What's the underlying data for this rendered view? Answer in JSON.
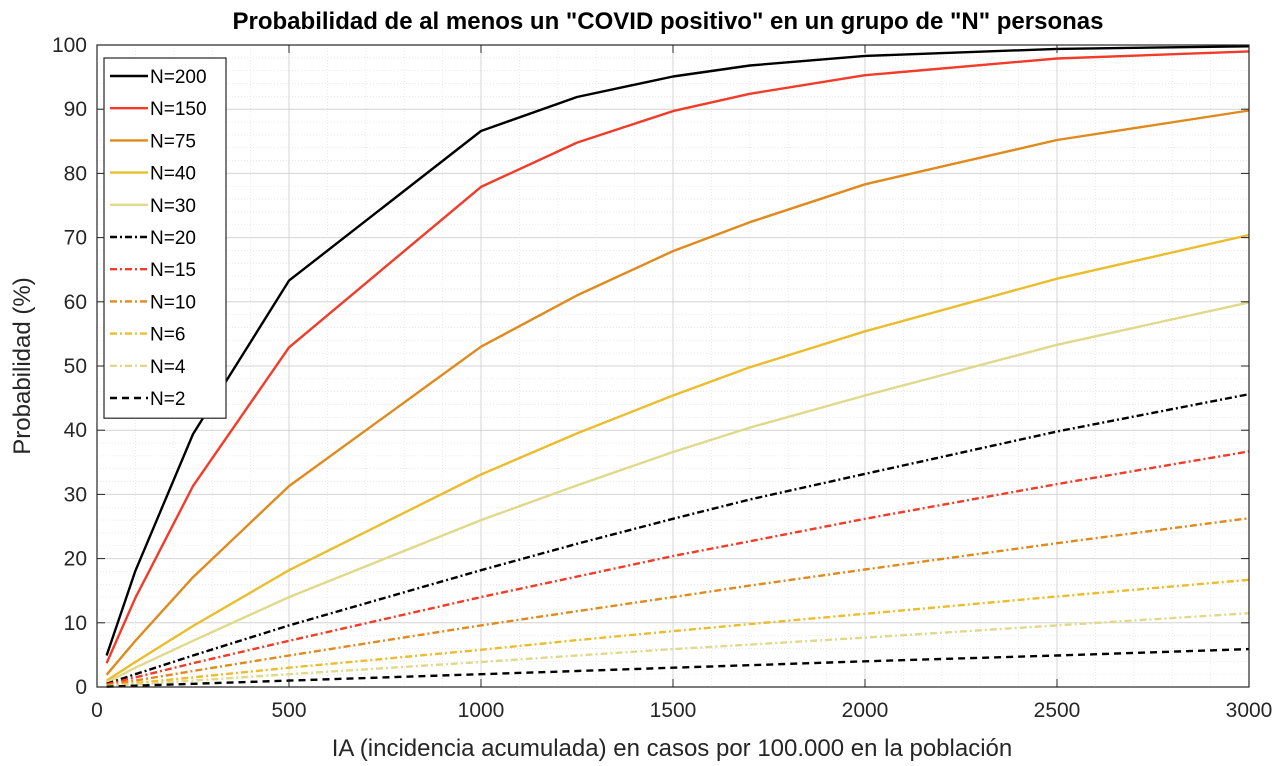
{
  "chart_data": {
    "type": "line",
    "title": "Probabilidad de al menos un \"COVID positivo\" en un grupo de \"N\" personas",
    "xlabel": "IA (incidencia acumulada) en casos por 100.000 en la población",
    "ylabel": "Probabilidad (%)",
    "xlim": [
      0,
      3000
    ],
    "ylim": [
      0,
      100
    ],
    "xticks": [
      0,
      500,
      1000,
      1500,
      2000,
      2500,
      3000
    ],
    "yticks": [
      0,
      10,
      20,
      30,
      40,
      50,
      60,
      70,
      80,
      90,
      100
    ],
    "grid": true,
    "minor_grid": true,
    "legend_position": "top-left",
    "x": [
      25,
      100,
      250,
      500,
      1000,
      1250,
      1500,
      1700,
      2000,
      2500,
      3000
    ],
    "series": [
      {
        "name": "N=200",
        "color": "#000000",
        "style": "solid",
        "values": [
          4.9,
          18.1,
          39.4,
          63.3,
          86.6,
          91.9,
          95.1,
          96.8,
          98.3,
          99.4,
          99.8
        ]
      },
      {
        "name": "N=150",
        "color": "#f03c28",
        "style": "solid",
        "values": [
          3.7,
          13.9,
          31.3,
          52.9,
          77.9,
          84.8,
          89.7,
          92.4,
          95.3,
          97.9,
          99.0
        ]
      },
      {
        "name": "N=75",
        "color": "#e08a1e",
        "style": "solid",
        "values": [
          1.9,
          7.2,
          17.1,
          31.3,
          53.0,
          61.0,
          67.9,
          72.4,
          78.3,
          85.2,
          89.8
        ]
      },
      {
        "name": "N=40",
        "color": "#ebbd2d",
        "style": "solid",
        "values": [
          1.0,
          3.9,
          9.5,
          18.2,
          33.1,
          39.5,
          45.4,
          49.8,
          55.4,
          63.6,
          70.4
        ]
      },
      {
        "name": "N=30",
        "color": "#e0d98c",
        "style": "solid",
        "values": [
          0.7,
          3.0,
          7.2,
          14.0,
          26.0,
          31.4,
          36.6,
          40.4,
          45.4,
          53.3,
          59.9
        ]
      },
      {
        "name": "N=20",
        "color": "#000000",
        "style": "dashdot",
        "values": [
          0.5,
          2.0,
          4.9,
          9.6,
          18.2,
          22.3,
          26.2,
          29.2,
          33.2,
          39.8,
          45.6
        ]
      },
      {
        "name": "N=15",
        "color": "#f03c28",
        "style": "dashdot",
        "values": [
          0.4,
          1.5,
          3.7,
          7.2,
          14.0,
          17.2,
          20.4,
          22.7,
          26.2,
          31.6,
          36.7
        ]
      },
      {
        "name": "N=10",
        "color": "#e08a1e",
        "style": "dashdot",
        "values": [
          0.25,
          1.0,
          2.5,
          4.9,
          9.6,
          11.8,
          14.0,
          15.8,
          18.3,
          22.4,
          26.3
        ]
      },
      {
        "name": "N=6",
        "color": "#ebbd2d",
        "style": "dashdot",
        "values": [
          0.15,
          0.6,
          1.5,
          3.0,
          5.8,
          7.3,
          8.7,
          9.8,
          11.4,
          14.1,
          16.7
        ]
      },
      {
        "name": "N=4",
        "color": "#e0d98c",
        "style": "dashdot",
        "values": [
          0.1,
          0.4,
          1.0,
          2.0,
          3.9,
          4.9,
          5.9,
          6.6,
          7.7,
          9.6,
          11.5
        ]
      },
      {
        "name": "N=2",
        "color": "#000000",
        "style": "dashed",
        "values": [
          0.05,
          0.2,
          0.5,
          1.0,
          2.0,
          2.5,
          3.0,
          3.4,
          4.0,
          4.9,
          5.9
        ]
      }
    ]
  }
}
